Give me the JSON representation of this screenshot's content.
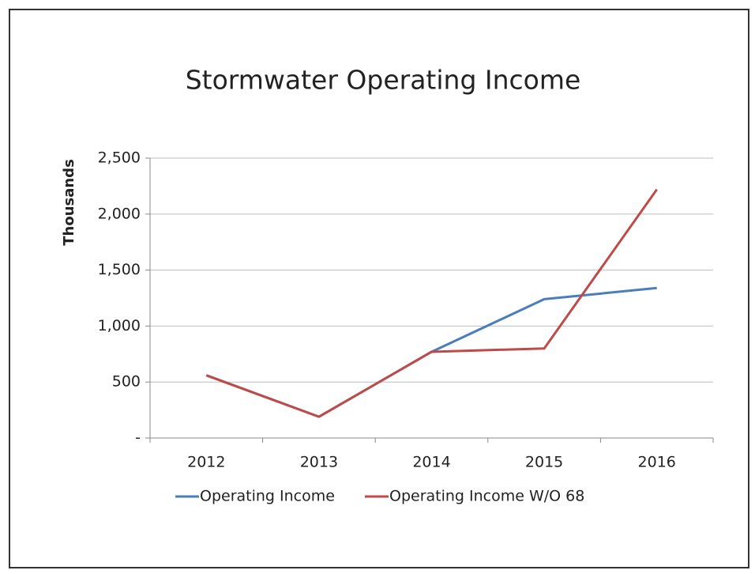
{
  "chart_data": {
    "type": "line",
    "title": "Stormwater Operating Income",
    "y_label": "Thousands",
    "categories": [
      "2012",
      "2013",
      "2014",
      "2015",
      "2016"
    ],
    "series": [
      {
        "name": "Operating Income",
        "color": "#4a7ebb",
        "values": [
          560,
          190,
          770,
          1240,
          1340
        ]
      },
      {
        "name": "Operating Income W/O 68",
        "color": "#be4b48",
        "values": [
          560,
          190,
          770,
          800,
          2220
        ]
      }
    ],
    "ylim": [
      0,
      2500
    ],
    "yticks": [
      {
        "value": 0,
        "label": "-"
      },
      500,
      {
        "value": 1000,
        "label": "1,000"
      },
      {
        "value": 1500,
        "label": "1,500"
      },
      {
        "value": 2000,
        "label": "2,000"
      },
      {
        "value": 2500,
        "label": "2,500"
      }
    ],
    "grid": true,
    "legend": "bottom"
  }
}
